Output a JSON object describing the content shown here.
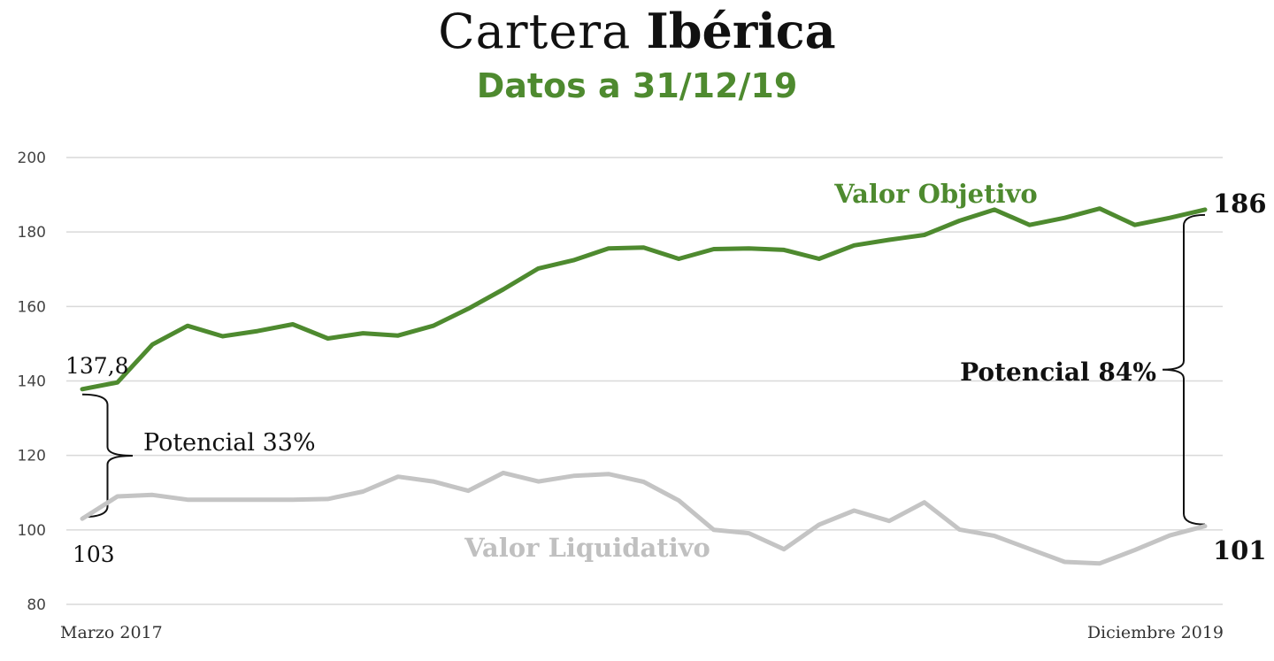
{
  "title": {
    "light": "Cartera",
    "bold": "Ibérica"
  },
  "subtitle": "Datos a 31/12/19",
  "chart_data": {
    "type": "line",
    "ylim": [
      80,
      200
    ],
    "yticks": [
      80,
      100,
      120,
      140,
      160,
      180,
      200
    ],
    "grid": true,
    "x_start_label": "Marzo 2017",
    "x_end_label": "Diciembre 2019",
    "series": [
      {
        "name": "Valor Objetivo",
        "color": "#4e8a2f",
        "values": [
          137.8,
          139.6,
          149.8,
          154.8,
          152.0,
          153.4,
          155.2,
          151.4,
          152.8,
          152.2,
          154.8,
          159.4,
          164.6,
          170.2,
          172.4,
          175.6,
          175.8,
          172.8,
          175.4,
          175.6,
          175.2,
          172.8,
          176.4,
          177.9,
          179.2,
          183.0,
          186.0,
          181.9,
          183.8,
          186.3,
          181.9,
          183.8,
          186.0
        ]
      },
      {
        "name": "Valor Liquidativo",
        "color": "#c4c4c4",
        "values": [
          103,
          109.0,
          109.4,
          108.1,
          108.1,
          108.1,
          108.1,
          108.3,
          110.3,
          114.3,
          113.0,
          110.5,
          115.3,
          113.0,
          114.5,
          115.0,
          112.9,
          107.9,
          100.0,
          99.1,
          94.8,
          101.4,
          105.2,
          102.4,
          107.4,
          100.1,
          98.4,
          94.9,
          91.4,
          91.0,
          94.6,
          98.5,
          101.0
        ]
      }
    ],
    "labels": {
      "start_objetivo": "137,8",
      "start_liquidativo": "103",
      "end_objetivo": "186",
      "end_liquidativo": "101",
      "potencial_start": "Potencial 33%",
      "potencial_end": "Potencial 84%"
    }
  }
}
